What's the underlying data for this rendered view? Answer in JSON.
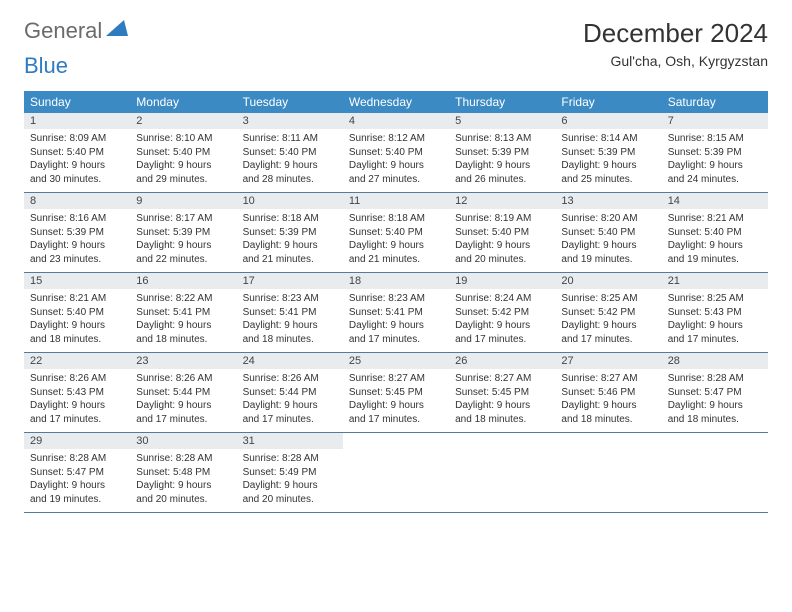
{
  "logo": {
    "text1": "General",
    "text2": "Blue",
    "shape_fill": "#2f7bbf"
  },
  "title": "December 2024",
  "location": "Gul'cha, Osh, Kyrgyzstan",
  "colors": {
    "header_bg": "#3b8ac4",
    "header_text": "#ffffff",
    "daynum_bg": "#e8ecef",
    "border": "#5a7a94",
    "body_text": "#333333"
  },
  "typography": {
    "title_fontsize": 26,
    "location_fontsize": 14,
    "dayheader_fontsize": 12,
    "daynum_fontsize": 11,
    "body_fontsize": 10
  },
  "day_headers": [
    "Sunday",
    "Monday",
    "Tuesday",
    "Wednesday",
    "Thursday",
    "Friday",
    "Saturday"
  ],
  "weeks": [
    [
      {
        "num": "1",
        "sunrise": "8:09 AM",
        "sunset": "5:40 PM",
        "daylight": "9 hours and 30 minutes."
      },
      {
        "num": "2",
        "sunrise": "8:10 AM",
        "sunset": "5:40 PM",
        "daylight": "9 hours and 29 minutes."
      },
      {
        "num": "3",
        "sunrise": "8:11 AM",
        "sunset": "5:40 PM",
        "daylight": "9 hours and 28 minutes."
      },
      {
        "num": "4",
        "sunrise": "8:12 AM",
        "sunset": "5:40 PM",
        "daylight": "9 hours and 27 minutes."
      },
      {
        "num": "5",
        "sunrise": "8:13 AM",
        "sunset": "5:39 PM",
        "daylight": "9 hours and 26 minutes."
      },
      {
        "num": "6",
        "sunrise": "8:14 AM",
        "sunset": "5:39 PM",
        "daylight": "9 hours and 25 minutes."
      },
      {
        "num": "7",
        "sunrise": "8:15 AM",
        "sunset": "5:39 PM",
        "daylight": "9 hours and 24 minutes."
      }
    ],
    [
      {
        "num": "8",
        "sunrise": "8:16 AM",
        "sunset": "5:39 PM",
        "daylight": "9 hours and 23 minutes."
      },
      {
        "num": "9",
        "sunrise": "8:17 AM",
        "sunset": "5:39 PM",
        "daylight": "9 hours and 22 minutes."
      },
      {
        "num": "10",
        "sunrise": "8:18 AM",
        "sunset": "5:39 PM",
        "daylight": "9 hours and 21 minutes."
      },
      {
        "num": "11",
        "sunrise": "8:18 AM",
        "sunset": "5:40 PM",
        "daylight": "9 hours and 21 minutes."
      },
      {
        "num": "12",
        "sunrise": "8:19 AM",
        "sunset": "5:40 PM",
        "daylight": "9 hours and 20 minutes."
      },
      {
        "num": "13",
        "sunrise": "8:20 AM",
        "sunset": "5:40 PM",
        "daylight": "9 hours and 19 minutes."
      },
      {
        "num": "14",
        "sunrise": "8:21 AM",
        "sunset": "5:40 PM",
        "daylight": "9 hours and 19 minutes."
      }
    ],
    [
      {
        "num": "15",
        "sunrise": "8:21 AM",
        "sunset": "5:40 PM",
        "daylight": "9 hours and 18 minutes."
      },
      {
        "num": "16",
        "sunrise": "8:22 AM",
        "sunset": "5:41 PM",
        "daylight": "9 hours and 18 minutes."
      },
      {
        "num": "17",
        "sunrise": "8:23 AM",
        "sunset": "5:41 PM",
        "daylight": "9 hours and 18 minutes."
      },
      {
        "num": "18",
        "sunrise": "8:23 AM",
        "sunset": "5:41 PM",
        "daylight": "9 hours and 17 minutes."
      },
      {
        "num": "19",
        "sunrise": "8:24 AM",
        "sunset": "5:42 PM",
        "daylight": "9 hours and 17 minutes."
      },
      {
        "num": "20",
        "sunrise": "8:25 AM",
        "sunset": "5:42 PM",
        "daylight": "9 hours and 17 minutes."
      },
      {
        "num": "21",
        "sunrise": "8:25 AM",
        "sunset": "5:43 PM",
        "daylight": "9 hours and 17 minutes."
      }
    ],
    [
      {
        "num": "22",
        "sunrise": "8:26 AM",
        "sunset": "5:43 PM",
        "daylight": "9 hours and 17 minutes."
      },
      {
        "num": "23",
        "sunrise": "8:26 AM",
        "sunset": "5:44 PM",
        "daylight": "9 hours and 17 minutes."
      },
      {
        "num": "24",
        "sunrise": "8:26 AM",
        "sunset": "5:44 PM",
        "daylight": "9 hours and 17 minutes."
      },
      {
        "num": "25",
        "sunrise": "8:27 AM",
        "sunset": "5:45 PM",
        "daylight": "9 hours and 17 minutes."
      },
      {
        "num": "26",
        "sunrise": "8:27 AM",
        "sunset": "5:45 PM",
        "daylight": "9 hours and 18 minutes."
      },
      {
        "num": "27",
        "sunrise": "8:27 AM",
        "sunset": "5:46 PM",
        "daylight": "9 hours and 18 minutes."
      },
      {
        "num": "28",
        "sunrise": "8:28 AM",
        "sunset": "5:47 PM",
        "daylight": "9 hours and 18 minutes."
      }
    ],
    [
      {
        "num": "29",
        "sunrise": "8:28 AM",
        "sunset": "5:47 PM",
        "daylight": "9 hours and 19 minutes."
      },
      {
        "num": "30",
        "sunrise": "8:28 AM",
        "sunset": "5:48 PM",
        "daylight": "9 hours and 20 minutes."
      },
      {
        "num": "31",
        "sunrise": "8:28 AM",
        "sunset": "5:49 PM",
        "daylight": "9 hours and 20 minutes."
      },
      null,
      null,
      null,
      null
    ]
  ],
  "labels": {
    "sunrise": "Sunrise:",
    "sunset": "Sunset:",
    "daylight": "Daylight:"
  }
}
